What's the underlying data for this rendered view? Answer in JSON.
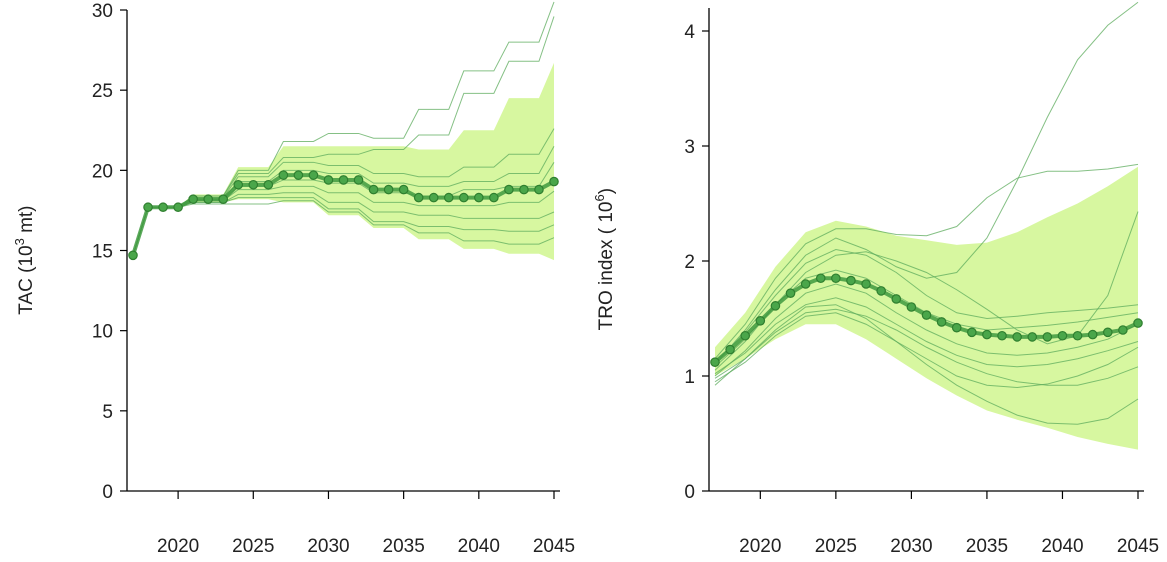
{
  "chart_data": [
    {
      "type": "line",
      "title": "",
      "xlabel": "",
      "ylabel_main": "TAC (10",
      "ylabel_sup": "3",
      "ylabel_tail": " mt)",
      "xlim": [
        2017,
        2045
      ],
      "ylim": [
        0,
        30
      ],
      "xticks": [
        2020,
        2025,
        2030,
        2035,
        2040,
        2045
      ],
      "yticks": [
        0,
        5,
        10,
        15,
        20,
        25,
        30
      ],
      "colors": {
        "band": "#d7f7a0",
        "median": "#3f9a3f",
        "median_point": "#4aa64a",
        "traj": "#5cab5c"
      },
      "band": {
        "x": [
          2017,
          2018,
          2019,
          2020,
          2021,
          2022,
          2023,
          2024,
          2025,
          2026,
          2027,
          2028,
          2029,
          2030,
          2031,
          2032,
          2033,
          2034,
          2035,
          2036,
          2037,
          2038,
          2039,
          2040,
          2041,
          2042,
          2043,
          2044,
          2045
        ],
        "upper": [
          14.7,
          17.7,
          17.7,
          17.7,
          18.5,
          18.5,
          18.5,
          20.2,
          20.2,
          20.2,
          21.5,
          21.5,
          21.5,
          21.5,
          21.5,
          21.5,
          21.5,
          21.5,
          21.5,
          21.3,
          21.3,
          21.3,
          22.5,
          22.5,
          22.5,
          24.5,
          24.5,
          24.5,
          26.7
        ],
        "lower": [
          14.7,
          17.7,
          17.7,
          17.7,
          18.0,
          18.0,
          18.0,
          18.2,
          18.2,
          18.2,
          18.0,
          18.0,
          18.0,
          17.2,
          17.2,
          17.2,
          16.4,
          16.4,
          16.4,
          15.7,
          15.7,
          15.7,
          15.1,
          15.1,
          15.1,
          14.8,
          14.8,
          14.8,
          14.4
        ]
      },
      "trajectories": [
        [
          14.7,
          17.7,
          17.7,
          17.7,
          18.4,
          18.4,
          18.4,
          20.0,
          20.0,
          20.0,
          21.8,
          21.8,
          21.8,
          22.3,
          22.3,
          22.3,
          22.0,
          22.0,
          22.0,
          23.8,
          23.8,
          23.8,
          26.2,
          26.2,
          26.2,
          28.0,
          28.0,
          28.0,
          30.5
        ],
        [
          14.7,
          17.7,
          17.7,
          17.7,
          18.4,
          18.4,
          18.4,
          19.8,
          19.8,
          19.8,
          20.8,
          20.8,
          20.8,
          21.0,
          21.0,
          21.0,
          21.3,
          21.3,
          21.3,
          22.2,
          22.2,
          22.2,
          24.8,
          24.8,
          24.8,
          26.8,
          26.8,
          26.8,
          29.6
        ],
        [
          14.7,
          17.7,
          17.7,
          17.7,
          18.3,
          18.3,
          18.3,
          19.6,
          19.6,
          19.6,
          20.5,
          20.5,
          20.5,
          20.3,
          20.3,
          20.3,
          19.8,
          19.8,
          19.8,
          19.6,
          19.6,
          19.6,
          20.2,
          20.2,
          20.2,
          21.0,
          21.0,
          21.0,
          22.6
        ],
        [
          14.7,
          17.7,
          17.7,
          17.7,
          18.2,
          18.2,
          18.2,
          19.3,
          19.3,
          19.3,
          20.0,
          20.0,
          20.0,
          19.8,
          19.8,
          19.8,
          19.2,
          19.2,
          19.2,
          19.0,
          19.0,
          19.0,
          19.3,
          19.3,
          19.3,
          19.8,
          19.8,
          19.8,
          21.5
        ],
        [
          14.7,
          17.7,
          17.7,
          17.7,
          18.2,
          18.2,
          18.2,
          19.0,
          19.0,
          19.0,
          19.4,
          19.4,
          19.4,
          19.2,
          19.2,
          19.2,
          18.6,
          18.6,
          18.6,
          18.4,
          18.4,
          18.4,
          18.8,
          18.8,
          18.8,
          19.0,
          19.0,
          19.0,
          20.5
        ],
        [
          14.7,
          17.7,
          17.7,
          17.7,
          18.1,
          18.1,
          18.1,
          18.8,
          18.8,
          18.8,
          19.0,
          19.0,
          19.0,
          18.6,
          18.6,
          18.6,
          18.0,
          18.0,
          18.0,
          17.8,
          17.8,
          17.8,
          17.8,
          17.8,
          17.8,
          18.0,
          18.0,
          18.0,
          18.7
        ],
        [
          14.7,
          17.7,
          17.7,
          17.7,
          18.0,
          18.0,
          18.0,
          18.5,
          18.5,
          18.5,
          18.6,
          18.6,
          18.6,
          18.0,
          18.0,
          18.0,
          17.4,
          17.4,
          17.4,
          17.2,
          17.2,
          17.2,
          17.0,
          17.0,
          17.0,
          17.0,
          17.0,
          17.0,
          17.4
        ],
        [
          14.7,
          17.7,
          17.7,
          17.7,
          18.0,
          18.0,
          18.0,
          18.3,
          18.3,
          18.3,
          18.3,
          18.3,
          18.3,
          17.6,
          17.6,
          17.6,
          16.8,
          16.8,
          16.8,
          16.5,
          16.5,
          16.5,
          16.3,
          16.3,
          16.3,
          16.2,
          16.2,
          16.2,
          16.6
        ],
        [
          14.7,
          17.7,
          17.7,
          17.7,
          17.9,
          17.9,
          17.9,
          17.9,
          17.9,
          17.9,
          18.1,
          18.1,
          18.1,
          17.4,
          17.4,
          17.4,
          16.6,
          16.6,
          16.6,
          16.1,
          16.1,
          16.1,
          15.6,
          15.6,
          15.6,
          15.4,
          15.4,
          15.4,
          15.8
        ]
      ],
      "median": {
        "x": [
          2017,
          2018,
          2019,
          2020,
          2021,
          2022,
          2023,
          2024,
          2025,
          2026,
          2027,
          2028,
          2029,
          2030,
          2031,
          2032,
          2033,
          2034,
          2035,
          2036,
          2037,
          2038,
          2039,
          2040,
          2041,
          2042,
          2043,
          2044,
          2045
        ],
        "y": [
          14.7,
          17.7,
          17.7,
          17.7,
          18.2,
          18.2,
          18.2,
          19.1,
          19.1,
          19.1,
          19.7,
          19.7,
          19.7,
          19.4,
          19.4,
          19.4,
          18.8,
          18.8,
          18.8,
          18.3,
          18.3,
          18.3,
          18.3,
          18.3,
          18.3,
          18.8,
          18.8,
          18.8,
          19.3
        ]
      }
    },
    {
      "type": "line",
      "title": "",
      "xlabel": "",
      "ylabel_main": "TRO index ( 10",
      "ylabel_sup": "6",
      "ylabel_tail": ")",
      "xlim": [
        2017,
        2045
      ],
      "ylim": [
        0,
        4.2
      ],
      "xticks": [
        2020,
        2025,
        2030,
        2035,
        2040,
        2045
      ],
      "yticks": [
        0,
        1,
        2,
        3,
        4
      ],
      "colors": {
        "band": "#d7f7a0",
        "median": "#3f9a3f",
        "median_point": "#4aa64a",
        "traj": "#5cab5c"
      },
      "band": {
        "x": [
          2017,
          2019,
          2021,
          2023,
          2025,
          2027,
          2029,
          2031,
          2033,
          2035,
          2037,
          2039,
          2041,
          2043,
          2045
        ],
        "upper": [
          1.25,
          1.55,
          1.95,
          2.25,
          2.35,
          2.3,
          2.22,
          2.18,
          2.14,
          2.16,
          2.25,
          2.38,
          2.5,
          2.65,
          2.82
        ],
        "lower": [
          1.0,
          1.15,
          1.32,
          1.45,
          1.45,
          1.32,
          1.15,
          0.98,
          0.83,
          0.7,
          0.62,
          0.55,
          0.47,
          0.41,
          0.36
        ]
      },
      "traj_x": [
        2017,
        2019,
        2021,
        2023,
        2025,
        2027,
        2029,
        2031,
        2033,
        2035,
        2037,
        2039,
        2041,
        2043,
        2045
      ],
      "trajectories": [
        [
          1.1,
          1.4,
          1.75,
          2.05,
          2.2,
          2.1,
          1.95,
          1.85,
          1.9,
          2.2,
          2.7,
          3.25,
          3.75,
          4.05,
          4.25
        ],
        [
          1.15,
          1.45,
          1.85,
          2.15,
          2.28,
          2.28,
          2.23,
          2.22,
          2.3,
          2.55,
          2.72,
          2.78,
          2.78,
          2.8,
          2.84
        ],
        [
          1.05,
          1.3,
          1.62,
          1.9,
          2.05,
          2.08,
          2.0,
          1.9,
          1.75,
          1.58,
          1.4,
          1.28,
          1.35,
          1.7,
          2.43
        ],
        [
          1.12,
          1.38,
          1.7,
          1.98,
          2.1,
          2.05,
          1.9,
          1.7,
          1.55,
          1.5,
          1.52,
          1.55,
          1.57,
          1.59,
          1.62
        ],
        [
          1.08,
          1.32,
          1.62,
          1.85,
          1.92,
          1.85,
          1.7,
          1.55,
          1.45,
          1.4,
          1.42,
          1.44,
          1.47,
          1.51,
          1.55
        ],
        [
          1.0,
          1.22,
          1.5,
          1.72,
          1.8,
          1.72,
          1.55,
          1.4,
          1.28,
          1.2,
          1.18,
          1.2,
          1.25,
          1.32,
          1.45
        ],
        [
          1.02,
          1.2,
          1.45,
          1.62,
          1.68,
          1.6,
          1.45,
          1.3,
          1.18,
          1.1,
          1.08,
          1.1,
          1.15,
          1.22,
          1.3
        ],
        [
          0.98,
          1.15,
          1.38,
          1.55,
          1.58,
          1.52,
          1.4,
          1.25,
          1.12,
          1.02,
          0.95,
          0.92,
          0.92,
          0.98,
          1.08
        ],
        [
          0.95,
          1.12,
          1.35,
          1.52,
          1.55,
          1.45,
          1.3,
          1.15,
          1.0,
          0.92,
          0.9,
          0.93,
          1.0,
          1.1,
          1.25
        ],
        [
          0.92,
          1.15,
          1.4,
          1.6,
          1.62,
          1.5,
          1.3,
          1.1,
          0.92,
          0.78,
          0.66,
          0.59,
          0.58,
          0.63,
          0.8
        ]
      ],
      "median": {
        "x": [
          2017,
          2018,
          2019,
          2020,
          2021,
          2022,
          2023,
          2024,
          2025,
          2026,
          2027,
          2028,
          2029,
          2030,
          2031,
          2032,
          2033,
          2034,
          2035,
          2036,
          2037,
          2038,
          2039,
          2040,
          2041,
          2042,
          2043,
          2044,
          2045
        ],
        "y": [
          1.12,
          1.23,
          1.35,
          1.48,
          1.61,
          1.72,
          1.8,
          1.85,
          1.85,
          1.83,
          1.8,
          1.74,
          1.67,
          1.6,
          1.53,
          1.47,
          1.42,
          1.38,
          1.36,
          1.35,
          1.34,
          1.34,
          1.34,
          1.35,
          1.35,
          1.36,
          1.38,
          1.4,
          1.46
        ]
      }
    }
  ]
}
